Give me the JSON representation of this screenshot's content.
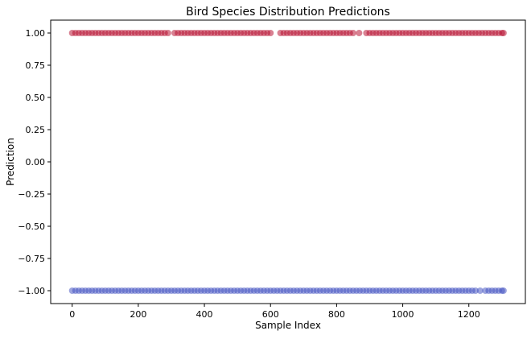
{
  "chart_data": {
    "type": "scatter",
    "title": "Bird Species Distribution Predictions",
    "xlabel": "Sample Index",
    "ylabel": "Prediction",
    "xlim": [
      -65,
      1371
    ],
    "ylim": [
      -1.1,
      1.1
    ],
    "xticks": [
      0,
      200,
      400,
      600,
      800,
      1000,
      1200
    ],
    "xtick_labels": [
      "0",
      "200",
      "400",
      "600",
      "800",
      "1000",
      "1200"
    ],
    "yticks": [
      1.0,
      0.75,
      0.5,
      0.25,
      0.0,
      -0.25,
      -0.5,
      -0.75,
      -1.0
    ],
    "ytick_labels": [
      "1.00",
      "0.75",
      "0.50",
      "0.25",
      "0.00",
      "−0.25",
      "−0.50",
      "−0.75",
      "−1.00"
    ],
    "grid": false,
    "marker_alpha": 0.5,
    "series": [
      {
        "y": 1,
        "color": "#b40426",
        "x": [
          0,
          10,
          20,
          30,
          40,
          50,
          60,
          70,
          80,
          90,
          100,
          110,
          120,
          130,
          140,
          150,
          160,
          170,
          180,
          190,
          200,
          210,
          220,
          230,
          240,
          250,
          260,
          270,
          280,
          290,
          310,
          320,
          330,
          340,
          350,
          360,
          370,
          380,
          390,
          400,
          410,
          420,
          430,
          440,
          450,
          460,
          470,
          480,
          490,
          500,
          510,
          520,
          530,
          540,
          550,
          560,
          570,
          580,
          590,
          600,
          630,
          640,
          650,
          660,
          670,
          680,
          690,
          700,
          710,
          720,
          730,
          740,
          750,
          760,
          770,
          780,
          790,
          800,
          810,
          820,
          830,
          840,
          850,
          868,
          890,
          900,
          910,
          920,
          930,
          940,
          950,
          960,
          970,
          980,
          990,
          1000,
          1010,
          1020,
          1030,
          1040,
          1050,
          1060,
          1070,
          1080,
          1090,
          1100,
          1110,
          1120,
          1130,
          1140,
          1150,
          1160,
          1170,
          1180,
          1190,
          1200,
          1210,
          1220,
          1230,
          1240,
          1250,
          1260,
          1270,
          1280,
          1290,
          1300,
          1305
        ]
      },
      {
        "y": -1,
        "color": "#3b4cc0",
        "x": [
          0,
          10,
          20,
          30,
          40,
          50,
          60,
          70,
          80,
          90,
          100,
          110,
          120,
          130,
          140,
          150,
          160,
          170,
          180,
          190,
          200,
          210,
          220,
          230,
          240,
          250,
          260,
          270,
          280,
          290,
          300,
          310,
          320,
          330,
          340,
          350,
          360,
          370,
          380,
          390,
          400,
          410,
          420,
          430,
          440,
          450,
          460,
          470,
          480,
          490,
          500,
          510,
          520,
          530,
          540,
          550,
          560,
          570,
          580,
          590,
          600,
          610,
          620,
          630,
          640,
          650,
          660,
          670,
          680,
          690,
          700,
          710,
          720,
          730,
          740,
          750,
          760,
          770,
          780,
          790,
          800,
          810,
          820,
          830,
          840,
          850,
          860,
          870,
          880,
          890,
          900,
          910,
          920,
          930,
          940,
          950,
          960,
          970,
          980,
          990,
          1000,
          1010,
          1020,
          1030,
          1040,
          1050,
          1060,
          1070,
          1080,
          1090,
          1100,
          1110,
          1120,
          1130,
          1140,
          1150,
          1160,
          1170,
          1180,
          1190,
          1200,
          1210,
          1220,
          1234,
          1250,
          1260,
          1270,
          1280,
          1290,
          1300,
          1305
        ]
      }
    ]
  }
}
